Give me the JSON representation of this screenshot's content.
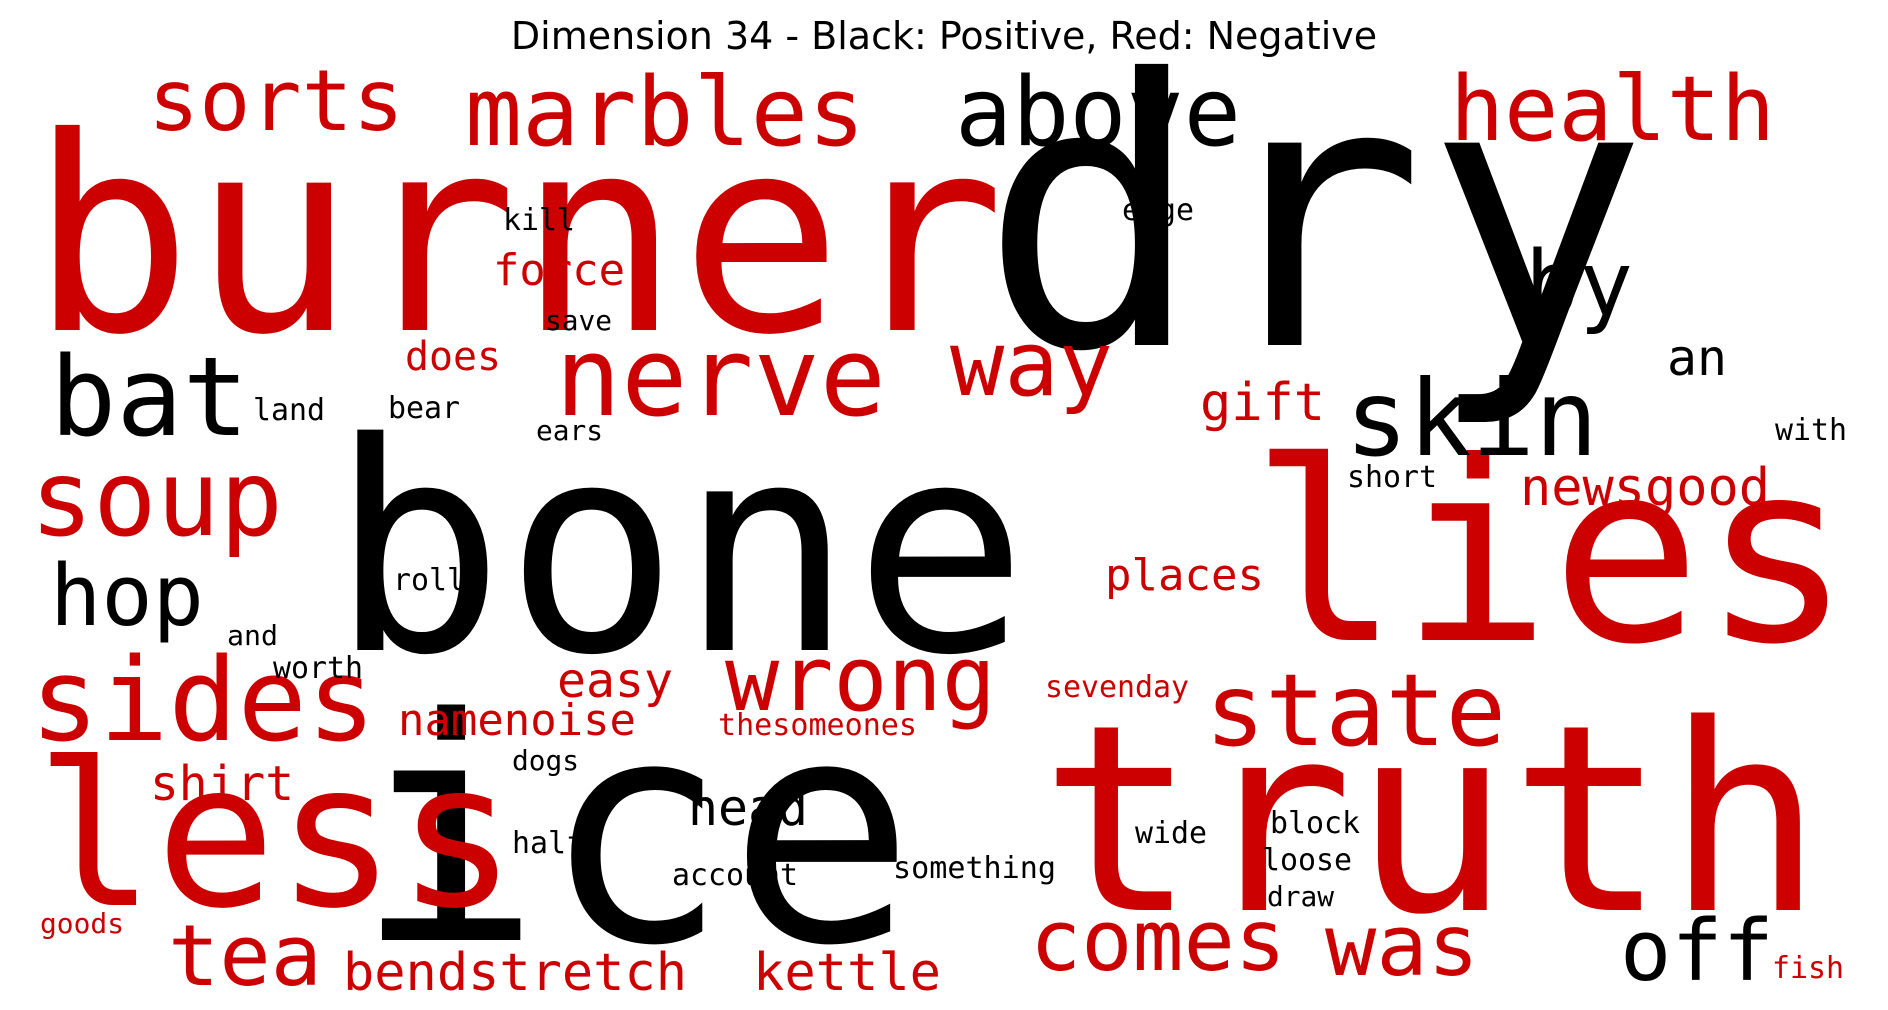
{
  "title": "Dimension 34 - Black: Positive, Red: Negative",
  "colors": {
    "positive": "#000000",
    "negative": "#cc0000"
  },
  "words": [
    {
      "text": "burner",
      "sign": "negative"
    },
    {
      "text": "dry",
      "sign": "positive"
    },
    {
      "text": "bone",
      "sign": "positive"
    },
    {
      "text": "ice",
      "sign": "positive"
    },
    {
      "text": "truth",
      "sign": "negative"
    },
    {
      "text": "lies",
      "sign": "negative"
    },
    {
      "text": "less",
      "sign": "negative"
    },
    {
      "text": "sides",
      "sign": "negative"
    },
    {
      "text": "nerve",
      "sign": "negative"
    },
    {
      "text": "skin",
      "sign": "positive"
    },
    {
      "text": "bat",
      "sign": "positive"
    },
    {
      "text": "soup",
      "sign": "negative"
    },
    {
      "text": "state",
      "sign": "negative"
    },
    {
      "text": "marbles",
      "sign": "negative"
    },
    {
      "text": "above",
      "sign": "positive"
    },
    {
      "text": "health",
      "sign": "negative"
    },
    {
      "text": "wrong",
      "sign": "negative"
    },
    {
      "text": "sorts",
      "sign": "negative"
    },
    {
      "text": "way",
      "sign": "negative"
    },
    {
      "text": "by",
      "sign": "positive"
    },
    {
      "text": "hop",
      "sign": "positive"
    },
    {
      "text": "comes",
      "sign": "negative"
    },
    {
      "text": "was",
      "sign": "negative"
    },
    {
      "text": "tea",
      "sign": "negative"
    },
    {
      "text": "off",
      "sign": "positive"
    },
    {
      "text": "bendstretch",
      "sign": "negative"
    },
    {
      "text": "kettle",
      "sign": "negative"
    },
    {
      "text": "newsgood",
      "sign": "negative"
    },
    {
      "text": "head",
      "sign": "positive"
    },
    {
      "text": "shirt",
      "sign": "negative"
    },
    {
      "text": "namenoise",
      "sign": "negative"
    },
    {
      "text": "easy",
      "sign": "negative"
    },
    {
      "text": "gift",
      "sign": "negative"
    },
    {
      "text": "places",
      "sign": "negative"
    },
    {
      "text": "an",
      "sign": "positive"
    },
    {
      "text": "force",
      "sign": "negative"
    },
    {
      "text": "does",
      "sign": "negative"
    },
    {
      "text": "thesomeones",
      "sign": "negative"
    },
    {
      "text": "sevenday",
      "sign": "negative"
    },
    {
      "text": "kill",
      "sign": "positive"
    },
    {
      "text": "edge",
      "sign": "positive"
    },
    {
      "text": "save",
      "sign": "positive"
    },
    {
      "text": "land",
      "sign": "positive"
    },
    {
      "text": "bear",
      "sign": "positive"
    },
    {
      "text": "ears",
      "sign": "positive"
    },
    {
      "text": "with",
      "sign": "positive"
    },
    {
      "text": "short",
      "sign": "positive"
    },
    {
      "text": "roll",
      "sign": "positive"
    },
    {
      "text": "and",
      "sign": "positive"
    },
    {
      "text": "worth",
      "sign": "positive"
    },
    {
      "text": "dogs",
      "sign": "positive"
    },
    {
      "text": "half",
      "sign": "positive"
    },
    {
      "text": "wide",
      "sign": "positive"
    },
    {
      "text": "block",
      "sign": "positive"
    },
    {
      "text": "loose",
      "sign": "positive"
    },
    {
      "text": "draw",
      "sign": "positive"
    },
    {
      "text": "account",
      "sign": "positive"
    },
    {
      "text": "something",
      "sign": "positive"
    },
    {
      "text": "goods",
      "sign": "negative"
    },
    {
      "text": "fish",
      "sign": "negative"
    }
  ]
}
